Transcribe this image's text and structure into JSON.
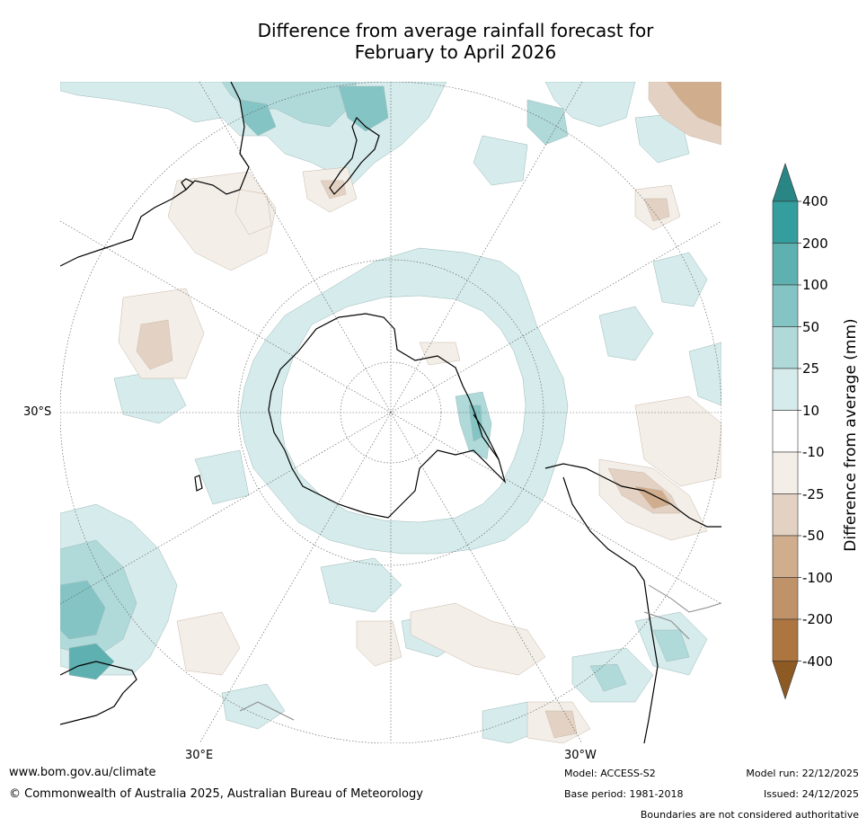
{
  "title": {
    "line1": "Difference from average rainfall forecast for",
    "line2": "February to April 2026"
  },
  "map": {
    "projection": "south polar stereographic",
    "latitude_labels": [
      "30°S"
    ],
    "longitude_labels": [
      "30°E",
      "30°W"
    ],
    "colors": {
      "teal_400": "#2a8585",
      "teal_200": "#349d9d",
      "teal_100": "#5fb0b0",
      "teal_50": "#85c4c4",
      "teal_25": "#b0d9d9",
      "teal_10": "#d6ebeb",
      "neutral": "#ffffff",
      "brown_10": "#f3eee8",
      "brown_25": "#e3d2c3",
      "brown_50": "#d0ad8d",
      "brown_100": "#c0926a",
      "brown_200": "#ad7540",
      "brown_400": "#8e5a23",
      "coast": "#000000",
      "border": "#888888"
    }
  },
  "colorbar": {
    "title": "Difference from average (mm)",
    "tick_labels": [
      "400",
      "200",
      "100",
      "50",
      "25",
      "10",
      "-10",
      "-25",
      "-50",
      "-100",
      "-200",
      "-400"
    ],
    "bins": [
      {
        "range": "> 400",
        "color": "#2a8585"
      },
      {
        "range": "200 to 400",
        "color": "#349d9d"
      },
      {
        "range": "100 to 200",
        "color": "#5fb0b0"
      },
      {
        "range": "50 to 100",
        "color": "#85c4c4"
      },
      {
        "range": "25 to 50",
        "color": "#b0d9d9"
      },
      {
        "range": "10 to 25",
        "color": "#d6ebeb"
      },
      {
        "range": "-10 to 10",
        "color": "#ffffff"
      },
      {
        "range": "-25 to -10",
        "color": "#f3eee8"
      },
      {
        "range": "-50 to -25",
        "color": "#e3d2c3"
      },
      {
        "range": "-100 to -50",
        "color": "#d0ad8d"
      },
      {
        "range": "-200 to -100",
        "color": "#c0926a"
      },
      {
        "range": "-400 to -200",
        "color": "#ad7540"
      },
      {
        "range": "< -400",
        "color": "#8e5a23"
      }
    ]
  },
  "footer": {
    "website": "www.bom.gov.au/climate",
    "copyright": "© Commonwealth of Australia 2025, Australian Bureau of Meteorology",
    "model": "Model: ACCESS-S2",
    "base_period": "Base period: 1981-2018",
    "model_run": "Model run: 22/12/2025",
    "issued": "Issued: 24/12/2025",
    "disclaimer": "Boundaries are not considered authoritative"
  }
}
